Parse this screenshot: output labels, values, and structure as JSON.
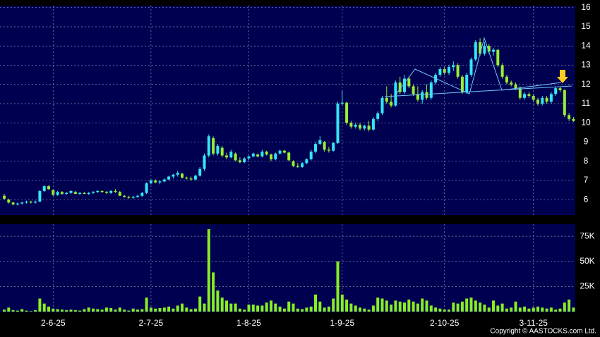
{
  "chart_data": [
    {
      "type": "candlestick",
      "up_color": "#33e6f5",
      "down_color": "#99ee33",
      "ylim": [
        5.2,
        16.1
      ],
      "yticks": [
        6,
        7,
        8,
        9,
        10,
        11,
        12,
        13,
        14,
        15,
        16
      ],
      "grid": true,
      "ohlc": [
        [
          6.2,
          6.3,
          6.0,
          6.05
        ],
        [
          6.0,
          6.05,
          5.8,
          5.85
        ],
        [
          5.85,
          5.9,
          5.7,
          5.75
        ],
        [
          5.75,
          5.85,
          5.7,
          5.8
        ],
        [
          5.8,
          5.9,
          5.75,
          5.85
        ],
        [
          5.85,
          5.95,
          5.8,
          5.9
        ],
        [
          5.9,
          5.95,
          5.8,
          5.85
        ],
        [
          5.85,
          5.95,
          5.8,
          5.9
        ],
        [
          5.9,
          6.5,
          5.9,
          6.45
        ],
        [
          6.45,
          6.75,
          6.4,
          6.7
        ],
        [
          6.7,
          6.75,
          6.5,
          6.55
        ],
        [
          6.5,
          6.55,
          6.2,
          6.25
        ],
        [
          6.25,
          6.45,
          6.2,
          6.4
        ],
        [
          6.4,
          6.45,
          6.25,
          6.3
        ],
        [
          6.3,
          6.4,
          6.25,
          6.35
        ],
        [
          6.35,
          6.5,
          6.3,
          6.45
        ],
        [
          6.4,
          6.45,
          6.3,
          6.3
        ],
        [
          6.3,
          6.4,
          6.25,
          6.35
        ],
        [
          6.35,
          6.4,
          6.3,
          6.3
        ],
        [
          6.3,
          6.4,
          6.25,
          6.35
        ],
        [
          6.35,
          6.45,
          6.3,
          6.4
        ],
        [
          6.4,
          6.5,
          6.35,
          6.45
        ],
        [
          6.45,
          6.5,
          6.35,
          6.4
        ],
        [
          6.4,
          6.45,
          6.3,
          6.35
        ],
        [
          6.35,
          6.5,
          6.3,
          6.45
        ],
        [
          6.45,
          6.55,
          6.35,
          6.4
        ],
        [
          6.4,
          6.45,
          6.2,
          6.2
        ],
        [
          6.2,
          6.25,
          6.1,
          6.15
        ],
        [
          6.15,
          6.2,
          6.05,
          6.1
        ],
        [
          6.1,
          6.2,
          6.05,
          6.15
        ],
        [
          6.15,
          6.25,
          6.1,
          6.2
        ],
        [
          6.2,
          6.4,
          6.15,
          6.35
        ],
        [
          6.35,
          6.9,
          6.3,
          6.85
        ],
        [
          6.85,
          7.05,
          6.8,
          7.0
        ],
        [
          7.0,
          7.05,
          6.85,
          6.9
        ],
        [
          6.9,
          7.0,
          6.8,
          6.95
        ],
        [
          6.95,
          7.1,
          6.9,
          7.05
        ],
        [
          7.05,
          7.25,
          7.0,
          7.2
        ],
        [
          7.2,
          7.35,
          7.1,
          7.3
        ],
        [
          7.3,
          7.5,
          7.2,
          7.4
        ],
        [
          7.35,
          7.4,
          7.1,
          7.15
        ],
        [
          7.15,
          7.2,
          7.05,
          7.1
        ],
        [
          7.1,
          7.2,
          7.0,
          7.05
        ],
        [
          7.05,
          7.3,
          7.0,
          7.25
        ],
        [
          7.25,
          7.7,
          7.2,
          7.6
        ],
        [
          7.6,
          8.4,
          7.5,
          8.3
        ],
        [
          8.3,
          9.4,
          8.2,
          9.3
        ],
        [
          9.2,
          9.3,
          8.3,
          8.4
        ],
        [
          8.4,
          8.9,
          8.3,
          8.8
        ],
        [
          8.7,
          8.8,
          8.2,
          8.3
        ],
        [
          8.3,
          8.45,
          8.1,
          8.2
        ],
        [
          8.2,
          8.6,
          8.15,
          8.5
        ],
        [
          8.4,
          8.45,
          8.0,
          8.05
        ],
        [
          8.05,
          8.2,
          7.9,
          7.95
        ],
        [
          7.95,
          8.2,
          7.9,
          8.15
        ],
        [
          8.15,
          8.3,
          8.05,
          8.25
        ],
        [
          8.25,
          8.45,
          8.2,
          8.4
        ],
        [
          8.35,
          8.4,
          8.2,
          8.25
        ],
        [
          8.25,
          8.6,
          8.2,
          8.5
        ],
        [
          8.5,
          8.55,
          8.3,
          8.35
        ],
        [
          8.35,
          8.4,
          8.0,
          8.1
        ],
        [
          8.1,
          8.45,
          8.05,
          8.4
        ],
        [
          8.4,
          8.6,
          8.35,
          8.55
        ],
        [
          8.55,
          8.6,
          8.4,
          8.45
        ],
        [
          8.45,
          8.5,
          8.0,
          8.05
        ],
        [
          8.0,
          8.05,
          7.7,
          7.75
        ],
        [
          7.75,
          7.9,
          7.65,
          7.7
        ],
        [
          7.7,
          7.95,
          7.65,
          7.9
        ],
        [
          7.9,
          8.15,
          7.85,
          8.1
        ],
        [
          8.1,
          8.6,
          8.05,
          8.5
        ],
        [
          8.5,
          9.0,
          8.4,
          8.9
        ],
        [
          8.9,
          9.3,
          8.85,
          9.1
        ],
        [
          9.0,
          9.05,
          8.5,
          8.6
        ],
        [
          8.6,
          8.75,
          8.45,
          8.55
        ],
        [
          8.55,
          9.0,
          8.5,
          8.95
        ],
        [
          8.95,
          11.1,
          8.9,
          11.0
        ],
        [
          11.0,
          11.7,
          10.9,
          11.05
        ],
        [
          11.05,
          11.1,
          9.9,
          10.0
        ],
        [
          10.0,
          10.1,
          9.7,
          9.8
        ],
        [
          9.8,
          10.0,
          9.7,
          9.9
        ],
        [
          9.9,
          10.0,
          9.6,
          9.7
        ],
        [
          9.7,
          9.9,
          9.6,
          9.85
        ],
        [
          9.85,
          10.1,
          9.55,
          9.65
        ],
        [
          9.65,
          10.3,
          9.6,
          10.2
        ],
        [
          10.2,
          10.6,
          10.1,
          10.5
        ],
        [
          10.5,
          11.4,
          10.4,
          11.3
        ],
        [
          11.3,
          11.9,
          11.0,
          11.1
        ],
        [
          11.1,
          11.5,
          10.8,
          10.9
        ],
        [
          10.9,
          12.2,
          10.85,
          12.1
        ],
        [
          12.1,
          12.4,
          11.5,
          11.6
        ],
        [
          11.6,
          12.5,
          11.5,
          12.3
        ],
        [
          12.3,
          12.4,
          11.8,
          11.9
        ],
        [
          11.9,
          12.0,
          11.4,
          11.5
        ],
        [
          11.5,
          11.9,
          11.1,
          11.2
        ],
        [
          11.2,
          11.7,
          11.0,
          11.6
        ],
        [
          11.6,
          12.0,
          11.2,
          11.3
        ],
        [
          11.3,
          12.2,
          11.2,
          12.1
        ],
        [
          12.1,
          12.6,
          12.0,
          12.5
        ],
        [
          12.5,
          12.9,
          12.4,
          12.8
        ],
        [
          12.8,
          12.9,
          12.5,
          12.6
        ],
        [
          12.6,
          13.0,
          12.5,
          12.9
        ],
        [
          12.9,
          13.2,
          12.7,
          13.0
        ],
        [
          13.0,
          13.1,
          12.3,
          12.4
        ],
        [
          12.4,
          12.5,
          11.5,
          11.6
        ],
        [
          11.6,
          12.6,
          11.5,
          12.5
        ],
        [
          12.5,
          13.4,
          12.4,
          13.3
        ],
        [
          13.3,
          14.3,
          13.2,
          14.2
        ],
        [
          14.2,
          14.4,
          13.5,
          13.6
        ],
        [
          13.6,
          14.2,
          13.5,
          14.0
        ],
        [
          14.0,
          14.1,
          13.6,
          13.7
        ],
        [
          13.7,
          13.9,
          13.5,
          13.8
        ],
        [
          13.8,
          13.85,
          12.9,
          13.0
        ],
        [
          13.0,
          13.1,
          12.3,
          12.4
        ],
        [
          12.4,
          12.5,
          12.0,
          12.1
        ],
        [
          12.1,
          12.2,
          11.9,
          12.0
        ],
        [
          12.0,
          12.1,
          11.7,
          11.8
        ],
        [
          11.8,
          11.9,
          11.2,
          11.3
        ],
        [
          11.3,
          11.6,
          11.2,
          11.5
        ],
        [
          11.5,
          11.6,
          11.3,
          11.4
        ],
        [
          11.4,
          11.5,
          11.1,
          11.2
        ],
        [
          11.2,
          11.3,
          10.9,
          11.0
        ],
        [
          11.0,
          11.4,
          10.9,
          11.3
        ],
        [
          11.3,
          11.4,
          11.0,
          11.1
        ],
        [
          11.1,
          11.6,
          11.0,
          11.5
        ],
        [
          11.5,
          11.9,
          11.4,
          11.8
        ],
        [
          11.8,
          11.9,
          11.6,
          11.7
        ],
        [
          11.7,
          11.75,
          10.3,
          10.4
        ],
        [
          10.4,
          10.5,
          10.1,
          10.2
        ],
        [
          10.2,
          10.3,
          10.05,
          10.1
        ]
      ]
    },
    {
      "type": "bar",
      "color": "#88ee22",
      "ylim": [
        0,
        87000
      ],
      "grid": true,
      "yticks": [
        {
          "value": 25000,
          "label": "25K"
        },
        {
          "value": 50000,
          "label": "50K"
        },
        {
          "value": 75000,
          "label": "75K"
        }
      ],
      "categories": [
        null,
        null,
        null,
        null,
        null,
        null,
        null,
        null,
        null,
        null,
        null,
        "2-6-25",
        null,
        null,
        null,
        null,
        null,
        null,
        null,
        null,
        null,
        null,
        null,
        null,
        null,
        null,
        null,
        null,
        null,
        null,
        null,
        null,
        null,
        "2-7-25",
        null,
        null,
        null,
        null,
        null,
        null,
        null,
        null,
        null,
        null,
        null,
        null,
        null,
        null,
        null,
        null,
        null,
        null,
        null,
        null,
        null,
        "1-8-25",
        null,
        null,
        null,
        null,
        null,
        null,
        null,
        null,
        null,
        null,
        null,
        null,
        null,
        null,
        null,
        null,
        null,
        null,
        null,
        null,
        "1-9-25",
        null,
        null,
        null,
        null,
        null,
        null,
        null,
        null,
        null,
        null,
        null,
        null,
        null,
        null,
        null,
        null,
        null,
        null,
        null,
        null,
        null,
        null,
        "2-10-25",
        null,
        null,
        null,
        null,
        null,
        null,
        null,
        null,
        null,
        null,
        null,
        null,
        null,
        null,
        null,
        null,
        null,
        null,
        null,
        "3-11-25",
        null,
        null,
        null,
        null,
        null,
        null,
        null,
        null,
        null
      ],
      "values": [
        2000,
        4000,
        1500,
        1000,
        2500,
        1000,
        500,
        1500,
        13000,
        8000,
        5000,
        3000,
        2500,
        2000,
        1500,
        2000,
        1500,
        1000,
        2500,
        4000,
        3000,
        2500,
        2000,
        4000,
        3500,
        2000,
        4000,
        2000,
        1000,
        3000,
        2000,
        2500,
        14000,
        4000,
        3000,
        3500,
        4000,
        5000,
        3000,
        6000,
        8000,
        4000,
        2500,
        3000,
        15000,
        8000,
        82000,
        39000,
        21000,
        14000,
        11000,
        8000,
        8000,
        3000,
        2000,
        7000,
        7000,
        6000,
        6000,
        9000,
        11000,
        8000,
        5000,
        3000,
        10000,
        8000,
        3000,
        2500,
        4000,
        5000,
        17000,
        10000,
        4000,
        5000,
        13000,
        50000,
        17000,
        12000,
        8000,
        6000,
        4000,
        3000,
        2000,
        6000,
        14000,
        13000,
        11000,
        7000,
        11000,
        10000,
        9000,
        12000,
        10000,
        8000,
        13000,
        11000,
        6000,
        4000,
        3000,
        2000,
        2000,
        9000,
        8000,
        10000,
        13000,
        14000,
        11000,
        9000,
        7000,
        4000,
        11000,
        6000,
        8000,
        3000,
        4000,
        10000,
        4000,
        5000,
        3000,
        4000,
        5000,
        4000,
        3000,
        4000,
        2000,
        3000,
        9000,
        12000,
        4000
      ]
    }
  ],
  "footer": "Copyright © AASTOCKS.com Ltd."
}
